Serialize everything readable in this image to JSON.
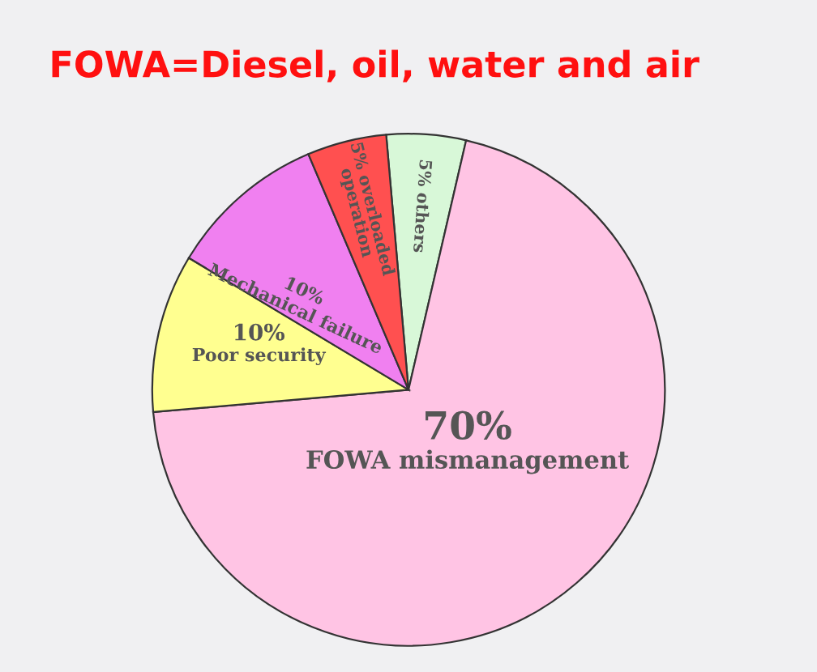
{
  "chart_data": {
    "type": "pie",
    "title": "FOWA=Diesel, oil, water and air",
    "categories": [
      "others",
      "FOWA mismanagement",
      "Poor security",
      "Mechanical failure",
      "overloaded operation"
    ],
    "values": [
      5,
      70,
      10,
      10,
      5
    ],
    "value_labels": [
      "5%",
      "70%",
      "10%",
      "10%",
      "5%"
    ],
    "colors": [
      "#d8f8d8",
      "#ffc4e4",
      "#ffff90",
      "#f080f0",
      "#ff5050"
    ],
    "legend": false
  }
}
